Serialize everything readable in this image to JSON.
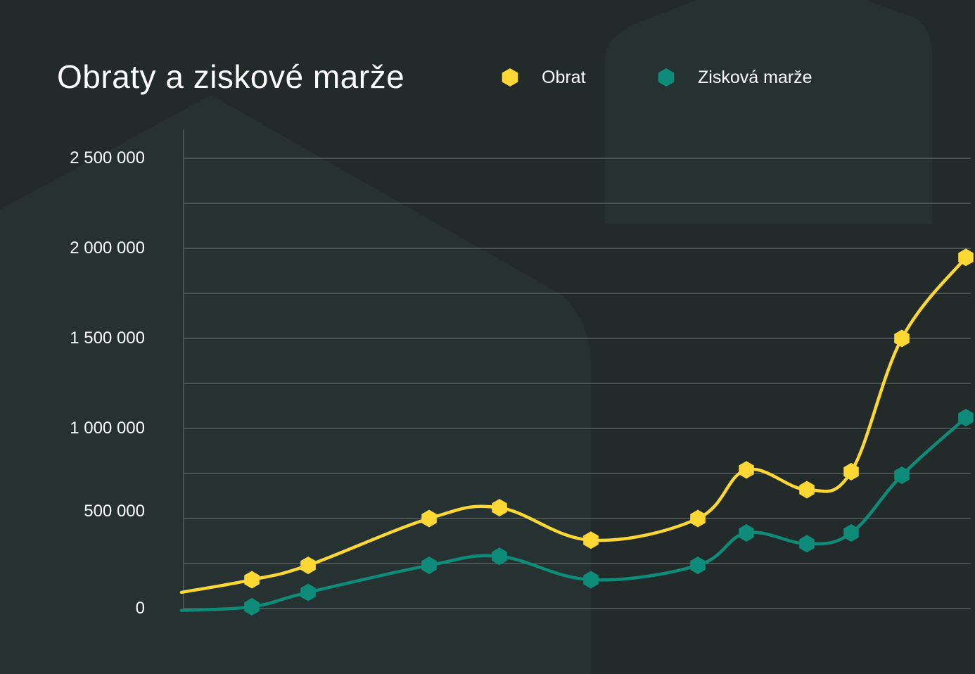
{
  "title": "Obraty a ziskové marže",
  "legend": {
    "obrat": "Obrat",
    "marze": "Zisková marže"
  },
  "colors": {
    "background": "#232b2a",
    "obrat": "#fdd835",
    "marze": "#0e8c79",
    "grid": "#56605e",
    "bg_shape": "#253231"
  },
  "chart_data": {
    "type": "line",
    "title": "Obraty a ziskové marže",
    "xlabel": "",
    "ylabel": "",
    "ylim": [
      0,
      2900000
    ],
    "y_ticks": [
      0,
      500000,
      1000000,
      1500000,
      2000000,
      2500000
    ],
    "y_tick_labels": [
      "0",
      "500 000",
      "1 000 000",
      "1 500 000",
      "2 000 000",
      "2 500 000"
    ],
    "grid": true,
    "legend_position": "top",
    "x": [
      1,
      2,
      3,
      4,
      5,
      6,
      7,
      8,
      9,
      10,
      11
    ],
    "series": [
      {
        "name": "Obrat",
        "color": "#fdd835",
        "values": [
          160000,
          240000,
          500000,
          560000,
          380000,
          500000,
          770000,
          660000,
          760000,
          1500000,
          1950000
        ]
      },
      {
        "name": "Zisková marže",
        "color": "#0e8c79",
        "values": [
          10000,
          90000,
          240000,
          290000,
          160000,
          240000,
          420000,
          360000,
          420000,
          740000,
          1060000
        ]
      }
    ]
  }
}
